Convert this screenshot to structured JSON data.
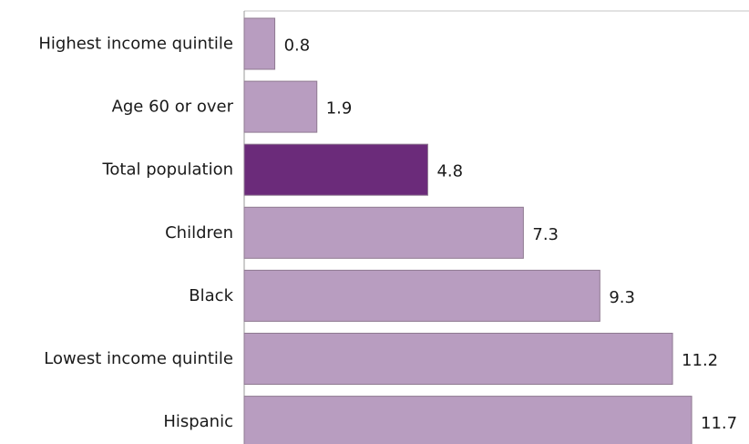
{
  "chart_data": {
    "type": "bar",
    "orientation": "horizontal",
    "categories": [
      "Highest income quintile",
      "Age 60 or over",
      "Total population",
      "Children",
      "Black",
      "Lowest income quintile",
      "Hispanic"
    ],
    "values": [
      0.8,
      1.9,
      4.8,
      7.3,
      9.3,
      11.2,
      11.7
    ],
    "value_labels": [
      "0.8",
      "1.9",
      "4.8",
      "7.3",
      "9.3",
      "11.2",
      "11.7"
    ],
    "highlighted_category": "Total population",
    "xlim": [
      0,
      13.2
    ],
    "grid": false,
    "legend": "none",
    "colors": {
      "bar": "#b89dc0",
      "highlight": "#6b2b7a"
    }
  }
}
